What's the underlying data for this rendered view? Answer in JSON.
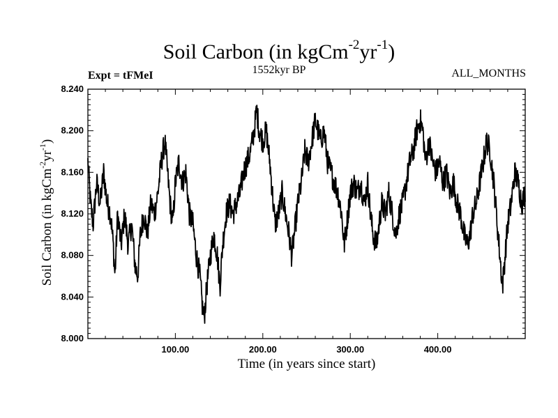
{
  "chart_data": {
    "type": "line",
    "title_main": "Soil Carbon (in kgCm",
    "title_exp1": "-2",
    "title_mid": "yr",
    "title_exp2": "-1",
    "title_end": ")",
    "subtitle": "1552kyr BP",
    "left_label": "Expt = tFMeI",
    "right_label": "ALL_MONTHS",
    "xlabel": "Time (in years since start)",
    "ylabel_main": "Soil Carbon (in kgCm",
    "ylabel_exp1": "-2",
    "ylabel_mid": "yr",
    "ylabel_exp2": "-1",
    "ylabel_end": ")",
    "xlim": [
      0,
      500
    ],
    "ylim": [
      8.0,
      8.24
    ],
    "xticks": [
      {
        "value": 100,
        "label": "100.00"
      },
      {
        "value": 200,
        "label": "200.00"
      },
      {
        "value": 300,
        "label": "300.00"
      },
      {
        "value": 400,
        "label": "400.00"
      }
    ],
    "yticks": [
      {
        "value": 8.0,
        "label": "8.000"
      },
      {
        "value": 8.04,
        "label": "8.040"
      },
      {
        "value": 8.08,
        "label": "8.080"
      },
      {
        "value": 8.12,
        "label": "8.120"
      },
      {
        "value": 8.16,
        "label": "8.160"
      },
      {
        "value": 8.2,
        "label": "8.200"
      },
      {
        "value": 8.24,
        "label": "8.240"
      }
    ],
    "series": [
      {
        "name": "Soil Carbon",
        "color": "#000000",
        "points": [
          [
            0,
            8.17
          ],
          [
            3,
            8.13
          ],
          [
            6,
            8.11
          ],
          [
            10,
            8.15
          ],
          [
            14,
            8.13
          ],
          [
            18,
            8.16
          ],
          [
            22,
            8.13
          ],
          [
            26,
            8.12
          ],
          [
            29,
            8.09
          ],
          [
            31,
            8.06
          ],
          [
            34,
            8.12
          ],
          [
            38,
            8.09
          ],
          [
            42,
            8.12
          ],
          [
            46,
            8.09
          ],
          [
            50,
            8.11
          ],
          [
            54,
            8.07
          ],
          [
            57,
            8.06
          ],
          [
            60,
            8.1
          ],
          [
            64,
            8.12
          ],
          [
            68,
            8.1
          ],
          [
            72,
            8.13
          ],
          [
            76,
            8.12
          ],
          [
            80,
            8.14
          ],
          [
            84,
            8.17
          ],
          [
            88,
            8.19
          ],
          [
            91,
            8.16
          ],
          [
            94,
            8.13
          ],
          [
            97,
            8.11
          ],
          [
            100,
            8.15
          ],
          [
            104,
            8.17
          ],
          [
            108,
            8.15
          ],
          [
            112,
            8.16
          ],
          [
            116,
            8.12
          ],
          [
            120,
            8.11
          ],
          [
            124,
            8.08
          ],
          [
            128,
            8.06
          ],
          [
            131,
            8.03
          ],
          [
            133,
            8.02
          ],
          [
            136,
            8.05
          ],
          [
            140,
            8.08
          ],
          [
            144,
            8.1
          ],
          [
            148,
            8.08
          ],
          [
            151,
            8.05
          ],
          [
            154,
            8.09
          ],
          [
            158,
            8.12
          ],
          [
            162,
            8.13
          ],
          [
            166,
            8.12
          ],
          [
            170,
            8.13
          ],
          [
            174,
            8.14
          ],
          [
            178,
            8.16
          ],
          [
            182,
            8.17
          ],
          [
            186,
            8.18
          ],
          [
            190,
            8.2
          ],
          [
            193,
            8.22
          ],
          [
            196,
            8.2
          ],
          [
            200,
            8.19
          ],
          [
            204,
            8.2
          ],
          [
            208,
            8.17
          ],
          [
            211,
            8.14
          ],
          [
            214,
            8.11
          ],
          [
            218,
            8.12
          ],
          [
            222,
            8.14
          ],
          [
            226,
            8.12
          ],
          [
            230,
            8.1
          ],
          [
            233,
            8.08
          ],
          [
            236,
            8.1
          ],
          [
            240,
            8.13
          ],
          [
            244,
            8.15
          ],
          [
            248,
            8.18
          ],
          [
            252,
            8.17
          ],
          [
            256,
            8.19
          ],
          [
            260,
            8.21
          ],
          [
            263,
            8.2
          ],
          [
            266,
            8.19
          ],
          [
            270,
            8.2
          ],
          [
            274,
            8.17
          ],
          [
            278,
            8.16
          ],
          [
            282,
            8.15
          ],
          [
            286,
            8.14
          ],
          [
            290,
            8.12
          ],
          [
            293,
            8.09
          ],
          [
            296,
            8.11
          ],
          [
            300,
            8.14
          ],
          [
            304,
            8.15
          ],
          [
            308,
            8.14
          ],
          [
            312,
            8.15
          ],
          [
            316,
            8.13
          ],
          [
            320,
            8.15
          ],
          [
            323,
            8.12
          ],
          [
            326,
            8.1
          ],
          [
            330,
            8.09
          ],
          [
            333,
            8.11
          ],
          [
            336,
            8.13
          ],
          [
            340,
            8.12
          ],
          [
            344,
            8.14
          ],
          [
            348,
            8.12
          ],
          [
            352,
            8.1
          ],
          [
            356,
            8.12
          ],
          [
            360,
            8.13
          ],
          [
            364,
            8.15
          ],
          [
            368,
            8.17
          ],
          [
            372,
            8.18
          ],
          [
            376,
            8.2
          ],
          [
            380,
            8.21
          ],
          [
            383,
            8.2
          ],
          [
            386,
            8.17
          ],
          [
            390,
            8.19
          ],
          [
            394,
            8.17
          ],
          [
            398,
            8.16
          ],
          [
            402,
            8.17
          ],
          [
            406,
            8.15
          ],
          [
            410,
            8.16
          ],
          [
            414,
            8.14
          ],
          [
            418,
            8.15
          ],
          [
            422,
            8.13
          ],
          [
            426,
            8.12
          ],
          [
            430,
            8.1
          ],
          [
            434,
            8.09
          ],
          [
            437,
            8.1
          ],
          [
            440,
            8.12
          ],
          [
            444,
            8.13
          ],
          [
            448,
            8.15
          ],
          [
            452,
            8.17
          ],
          [
            456,
            8.19
          ],
          [
            460,
            8.18
          ],
          [
            464,
            8.15
          ],
          [
            467,
            8.12
          ],
          [
            470,
            8.09
          ],
          [
            472,
            8.07
          ],
          [
            474,
            8.05
          ],
          [
            477,
            8.08
          ],
          [
            480,
            8.11
          ],
          [
            484,
            8.13
          ],
          [
            488,
            8.16
          ],
          [
            492,
            8.15
          ],
          [
            496,
            8.13
          ],
          [
            500,
            8.14
          ]
        ]
      }
    ]
  }
}
